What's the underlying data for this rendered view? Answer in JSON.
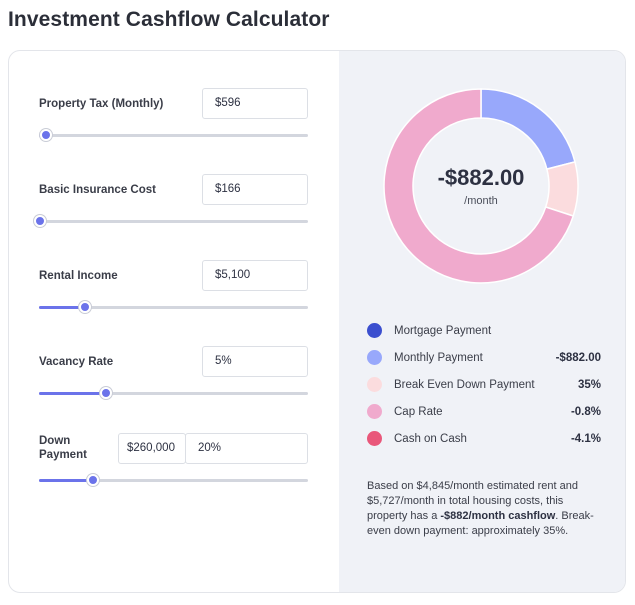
{
  "title": "Investment Cashflow Calculator",
  "fields": [
    {
      "label": "Property Tax (Monthly)",
      "value": "$596",
      "slider_pct": 2.5
    },
    {
      "label": "Basic Insurance Cost",
      "value": "$166",
      "slider_pct": 0.5
    },
    {
      "label": "Rental Income",
      "value": "$5,100",
      "slider_pct": 17
    },
    {
      "label": "Vacancy Rate",
      "value": "5%",
      "slider_pct": 25
    },
    {
      "label_line1": "Down",
      "label_line2": "Payment",
      "value_amount": "$260,000",
      "value_pct": "20%",
      "slider_pct": 20
    }
  ],
  "donut": {
    "value": "-$882.00",
    "sub": "/month",
    "segments": [
      {
        "name": "Mortgage Payment",
        "fraction": 0.0,
        "color": "#3b4fcf"
      },
      {
        "name": "Monthly Payment",
        "fraction": 0.21,
        "color": "#98a8fb"
      },
      {
        "name": "Break Even Down Payment",
        "fraction": 0.09,
        "color": "#fbdcde"
      },
      {
        "name": "Cap Rate",
        "fraction": 0.7,
        "color": "#f0aacd"
      },
      {
        "name": "Cash on Cash",
        "fraction": 0.0,
        "color": "#e9577a"
      }
    ]
  },
  "legend": [
    {
      "label": "Mortgage Payment",
      "value": "",
      "color": "#3b4fcf"
    },
    {
      "label": "Monthly Payment",
      "value": "-$882.00",
      "color": "#98a8fb"
    },
    {
      "label": "Break Even Down Payment",
      "value": "35%",
      "color": "#fbdcde"
    },
    {
      "label": "Cap Rate",
      "value": "-0.8%",
      "color": "#f0aacd"
    },
    {
      "label": "Cash on Cash",
      "value": "-4.1%",
      "color": "#e9577a"
    }
  ],
  "summary": {
    "part1": "Based on $4,845/month estimated rent and $5,727/month in total housing costs, this property has a ",
    "bold": "-$882/month cashflow",
    "part2": ". Break-even down payment: approximately 35%."
  }
}
